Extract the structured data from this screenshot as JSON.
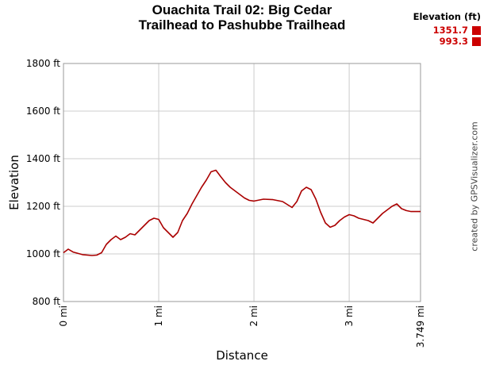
{
  "chart_data": {
    "type": "line",
    "title_line1": "Ouachita Trail 02: Big Cedar",
    "title_line2": "Trailhead to Pashubbe Trailhead",
    "xlabel": "Distance",
    "ylabel": "Elevation",
    "xlim": [
      0,
      3.749
    ],
    "ylim": [
      800,
      1800
    ],
    "y_ticks": [
      {
        "value": 800,
        "label": "800 ft"
      },
      {
        "value": 1000,
        "label": "1000 ft"
      },
      {
        "value": 1200,
        "label": "1200 ft"
      },
      {
        "value": 1400,
        "label": "1400 ft"
      },
      {
        "value": 1600,
        "label": "1600 ft"
      },
      {
        "value": 1800,
        "label": "1800 ft"
      }
    ],
    "x_ticks": [
      {
        "value": 0,
        "label": "0 mi"
      },
      {
        "value": 1,
        "label": "1 mi"
      },
      {
        "value": 2,
        "label": "2 mi"
      },
      {
        "value": 3,
        "label": "3 mi"
      },
      {
        "value": 3.749,
        "label": "3.749 mi"
      }
    ],
    "grid": true,
    "legend": {
      "title": "Elevation (ft)",
      "placement": "top-right",
      "entries": [
        {
          "label": "1351.7",
          "color": "#cc0000"
        },
        {
          "label": "993.3",
          "color": "#cc0000"
        }
      ]
    },
    "series": [
      {
        "color": "#aa0000",
        "x": [
          0,
          0.05,
          0.1,
          0.2,
          0.3,
          0.35,
          0.4,
          0.45,
          0.5,
          0.55,
          0.6,
          0.65,
          0.7,
          0.75,
          0.8,
          0.85,
          0.9,
          0.95,
          1.0,
          1.05,
          1.1,
          1.15,
          1.2,
          1.25,
          1.3,
          1.35,
          1.4,
          1.45,
          1.5,
          1.55,
          1.6,
          1.65,
          1.7,
          1.75,
          1.8,
          1.85,
          1.9,
          1.95,
          2.0,
          2.1,
          2.2,
          2.3,
          2.4,
          2.45,
          2.5,
          2.55,
          2.6,
          2.65,
          2.7,
          2.75,
          2.8,
          2.85,
          2.9,
          2.95,
          3.0,
          3.05,
          3.1,
          3.15,
          3.2,
          3.25,
          3.3,
          3.35,
          3.4,
          3.45,
          3.5,
          3.55,
          3.6,
          3.65,
          3.7,
          3.749
        ],
        "y": [
          1005,
          1020,
          1008,
          997,
          993.3,
          995,
          1005,
          1040,
          1060,
          1075,
          1060,
          1070,
          1085,
          1080,
          1100,
          1120,
          1140,
          1150,
          1145,
          1110,
          1090,
          1070,
          1090,
          1140,
          1170,
          1210,
          1245,
          1280,
          1310,
          1345,
          1351.7,
          1325,
          1300,
          1280,
          1265,
          1250,
          1235,
          1225,
          1222,
          1230,
          1228,
          1220,
          1195,
          1220,
          1265,
          1280,
          1270,
          1230,
          1175,
          1130,
          1112,
          1120,
          1140,
          1155,
          1165,
          1160,
          1150,
          1145,
          1140,
          1130,
          1150,
          1170,
          1185,
          1200,
          1210,
          1190,
          1182,
          1178,
          1178,
          1178
        ]
      }
    ]
  },
  "credit": "created by GPSVisualizer.com"
}
